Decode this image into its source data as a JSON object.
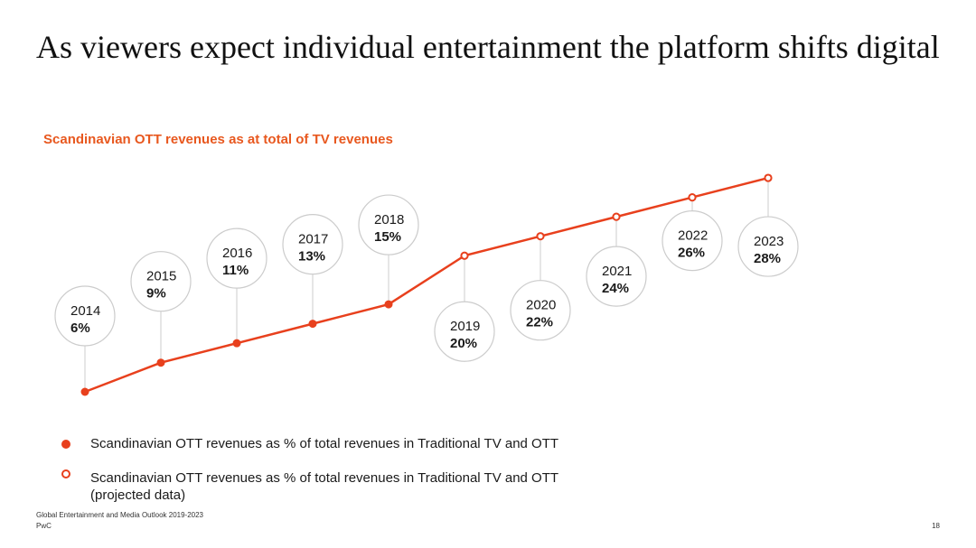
{
  "page": {
    "title": "As viewers expect individual entertainment the platform shifts digital",
    "footer_source": "Global Entertainment and Media Outlook 2019-2023",
    "footer_brand": "PwC",
    "page_number": "18"
  },
  "chart_data": {
    "type": "line",
    "title": "Scandinavian OTT revenues as at total of TV revenues",
    "xlabel": "",
    "ylabel": "",
    "ylim": [
      6,
      28
    ],
    "grid": false,
    "x": [
      "2014",
      "2015",
      "2016",
      "2017",
      "2018",
      "2019",
      "2020",
      "2021",
      "2022",
      "2023"
    ],
    "values": [
      6,
      9,
      11,
      13,
      15,
      20,
      22,
      24,
      26,
      28
    ],
    "value_labels": [
      "6%",
      "9%",
      "11%",
      "13%",
      "15%",
      "20%",
      "22%",
      "24%",
      "26%",
      "28%"
    ],
    "projected": [
      false,
      false,
      false,
      false,
      false,
      true,
      true,
      true,
      true,
      true
    ],
    "series": [
      {
        "name": "Scandinavian OTT revenues as % of total revenues in Traditional TV and OTT",
        "marker": "filled"
      },
      {
        "name": "Scandinavian OTT revenues as % of total revenues in Traditional TV and OTT (projected data)",
        "marker": "hollow"
      }
    ],
    "legend": {
      "placement": "bottom-left",
      "actual_label": "Scandinavian OTT revenues as % of total revenues in Traditional TV and OTT",
      "projected_label_line1": "Scandinavian OTT revenues as % of total revenues in Traditional TV and OTT",
      "projected_label_line2": "(projected data)"
    },
    "colors": {
      "line": "#e8401d",
      "title": "#e8581f",
      "bubble_border": "#cccccc"
    }
  }
}
